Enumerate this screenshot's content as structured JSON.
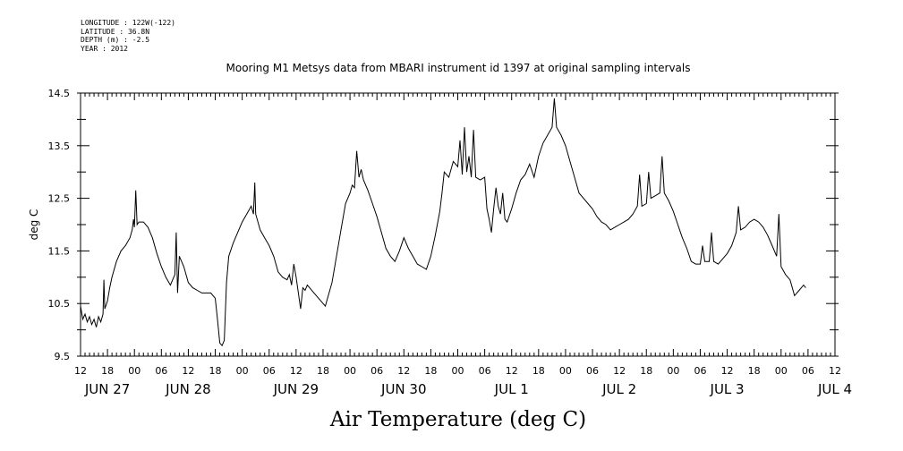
{
  "header": {
    "longitude": "LONGITUDE : 122W(-122)",
    "latitude": "LATITUDE : 36.8N",
    "depth": "DEPTH (m) : -2.5",
    "year": "YEAR : 2012"
  },
  "chart_data": {
    "type": "line",
    "title": "Mooring M1 Metsys data from MBARI instrument id 1397 at original sampling intervals",
    "xlabel": "Air Temperature (deg C)",
    "ylabel": "deg C",
    "ylim": [
      9.5,
      14.5
    ],
    "yticks": [
      "9.5",
      "10.5",
      "11.5",
      "12.5",
      "13.5",
      "14.5"
    ],
    "x_unit": "hours since JUN 27 00:00",
    "xlim": [
      12,
      180
    ],
    "hour_ticks": [
      "12",
      "18",
      "00",
      "06",
      "12",
      "18",
      "00",
      "06",
      "12",
      "18",
      "00",
      "06",
      "12",
      "18",
      "00",
      "06",
      "12",
      "18",
      "00",
      "06",
      "12",
      "18",
      "00",
      "06",
      "12",
      "18",
      "00",
      "06",
      "12"
    ],
    "dates": [
      "JUN 27",
      "JUN 28",
      "JUN 29",
      "JUN 30",
      "JUL  1",
      "JUL  2",
      "JUL  3",
      "JUL  4"
    ],
    "grid": false,
    "series": [
      {
        "color": "#000000",
        "points": [
          [
            12.0,
            10.45
          ],
          [
            12.5,
            10.2
          ],
          [
            13.0,
            10.3
          ],
          [
            13.5,
            10.15
          ],
          [
            14.0,
            10.25
          ],
          [
            14.5,
            10.1
          ],
          [
            15.0,
            10.2
          ],
          [
            15.5,
            10.05
          ],
          [
            16.0,
            10.25
          ],
          [
            16.5,
            10.15
          ],
          [
            17.0,
            10.3
          ],
          [
            17.2,
            10.95
          ],
          [
            17.4,
            10.4
          ],
          [
            18.0,
            10.55
          ],
          [
            18.5,
            10.8
          ],
          [
            19.0,
            11.0
          ],
          [
            20.0,
            11.3
          ],
          [
            21.0,
            11.5
          ],
          [
            22.0,
            11.6
          ],
          [
            23.0,
            11.75
          ],
          [
            23.5,
            11.9
          ],
          [
            23.8,
            12.1
          ],
          [
            24.0,
            11.95
          ],
          [
            24.3,
            12.65
          ],
          [
            24.6,
            12.0
          ],
          [
            25.0,
            12.05
          ],
          [
            26.0,
            12.05
          ],
          [
            27.0,
            11.95
          ],
          [
            28.0,
            11.75
          ],
          [
            29.0,
            11.45
          ],
          [
            30.0,
            11.2
          ],
          [
            31.0,
            11.0
          ],
          [
            32.0,
            10.85
          ],
          [
            32.5,
            10.95
          ],
          [
            33.0,
            11.05
          ],
          [
            33.3,
            11.85
          ],
          [
            33.6,
            10.7
          ],
          [
            34.0,
            11.4
          ],
          [
            35.0,
            11.2
          ],
          [
            36.0,
            10.9
          ],
          [
            37.0,
            10.8
          ],
          [
            38.0,
            10.75
          ],
          [
            39.0,
            10.7
          ],
          [
            40.0,
            10.7
          ],
          [
            41.0,
            10.7
          ],
          [
            42.0,
            10.6
          ],
          [
            42.5,
            10.2
          ],
          [
            43.0,
            9.75
          ],
          [
            43.5,
            9.7
          ],
          [
            44.0,
            9.8
          ],
          [
            44.5,
            10.9
          ],
          [
            45.0,
            11.4
          ],
          [
            46.0,
            11.65
          ],
          [
            47.0,
            11.85
          ],
          [
            48.0,
            12.05
          ],
          [
            49.0,
            12.2
          ],
          [
            50.0,
            12.35
          ],
          [
            50.5,
            12.2
          ],
          [
            50.8,
            12.8
          ],
          [
            51.0,
            12.2
          ],
          [
            52.0,
            11.9
          ],
          [
            53.0,
            11.75
          ],
          [
            54.0,
            11.6
          ],
          [
            55.0,
            11.4
          ],
          [
            56.0,
            11.1
          ],
          [
            57.0,
            11.0
          ],
          [
            58.0,
            10.95
          ],
          [
            58.5,
            11.05
          ],
          [
            59.0,
            10.85
          ],
          [
            59.5,
            11.25
          ],
          [
            60.0,
            11.0
          ],
          [
            60.5,
            10.7
          ],
          [
            61.0,
            10.4
          ],
          [
            61.5,
            10.8
          ],
          [
            62.0,
            10.75
          ],
          [
            62.5,
            10.85
          ],
          [
            63.0,
            10.8
          ],
          [
            64.0,
            10.7
          ],
          [
            65.0,
            10.6
          ],
          [
            66.0,
            10.5
          ],
          [
            66.5,
            10.45
          ],
          [
            67.0,
            10.6
          ],
          [
            68.0,
            10.9
          ],
          [
            69.0,
            11.4
          ],
          [
            70.0,
            11.9
          ],
          [
            71.0,
            12.4
          ],
          [
            72.0,
            12.6
          ],
          [
            72.5,
            12.75
          ],
          [
            73.0,
            12.7
          ],
          [
            73.5,
            13.4
          ],
          [
            74.0,
            12.9
          ],
          [
            74.5,
            13.05
          ],
          [
            75.0,
            12.85
          ],
          [
            76.0,
            12.65
          ],
          [
            77.0,
            12.4
          ],
          [
            78.0,
            12.15
          ],
          [
            79.0,
            11.85
          ],
          [
            80.0,
            11.55
          ],
          [
            81.0,
            11.4
          ],
          [
            82.0,
            11.3
          ],
          [
            83.0,
            11.5
          ],
          [
            84.0,
            11.75
          ],
          [
            85.0,
            11.55
          ],
          [
            86.0,
            11.4
          ],
          [
            87.0,
            11.25
          ],
          [
            88.0,
            11.2
          ],
          [
            89.0,
            11.15
          ],
          [
            90.0,
            11.4
          ],
          [
            91.0,
            11.8
          ],
          [
            92.0,
            12.25
          ],
          [
            92.5,
            12.6
          ],
          [
            93.0,
            13.0
          ],
          [
            94.0,
            12.9
          ],
          [
            95.0,
            13.2
          ],
          [
            96.0,
            13.1
          ],
          [
            96.5,
            13.6
          ],
          [
            97.0,
            12.95
          ],
          [
            97.5,
            13.85
          ],
          [
            98.0,
            13.0
          ],
          [
            98.5,
            13.3
          ],
          [
            99.0,
            12.9
          ],
          [
            99.5,
            13.8
          ],
          [
            100.0,
            12.9
          ],
          [
            101.0,
            12.85
          ],
          [
            102.0,
            12.9
          ],
          [
            102.5,
            12.3
          ],
          [
            103.0,
            12.1
          ],
          [
            103.5,
            11.85
          ],
          [
            104.0,
            12.3
          ],
          [
            104.5,
            12.7
          ],
          [
            105.0,
            12.35
          ],
          [
            105.5,
            12.2
          ],
          [
            106.0,
            12.6
          ],
          [
            106.5,
            12.1
          ],
          [
            107.0,
            12.05
          ],
          [
            108.0,
            12.3
          ],
          [
            109.0,
            12.6
          ],
          [
            110.0,
            12.85
          ],
          [
            111.0,
            12.95
          ],
          [
            112.0,
            13.15
          ],
          [
            113.0,
            12.9
          ],
          [
            114.0,
            13.3
          ],
          [
            115.0,
            13.55
          ],
          [
            116.0,
            13.7
          ],
          [
            117.0,
            13.85
          ],
          [
            117.5,
            14.4
          ],
          [
            118.0,
            13.85
          ],
          [
            119.0,
            13.7
          ],
          [
            120.0,
            13.5
          ],
          [
            121.0,
            13.2
          ],
          [
            122.0,
            12.9
          ],
          [
            123.0,
            12.6
          ],
          [
            124.0,
            12.5
          ],
          [
            125.0,
            12.4
          ],
          [
            126.0,
            12.3
          ],
          [
            127.0,
            12.15
          ],
          [
            128.0,
            12.05
          ],
          [
            129.0,
            12.0
          ],
          [
            130.0,
            11.9
          ],
          [
            131.0,
            11.95
          ],
          [
            132.0,
            12.0
          ],
          [
            133.0,
            12.05
          ],
          [
            134.0,
            12.1
          ],
          [
            135.0,
            12.2
          ],
          [
            136.0,
            12.35
          ],
          [
            136.5,
            12.95
          ],
          [
            137.0,
            12.35
          ],
          [
            138.0,
            12.4
          ],
          [
            138.5,
            13.0
          ],
          [
            139.0,
            12.5
          ],
          [
            140.0,
            12.55
          ],
          [
            141.0,
            12.6
          ],
          [
            141.5,
            13.3
          ],
          [
            142.0,
            12.6
          ],
          [
            143.0,
            12.45
          ],
          [
            144.0,
            12.25
          ],
          [
            145.0,
            12.0
          ],
          [
            146.0,
            11.75
          ],
          [
            147.0,
            11.55
          ],
          [
            148.0,
            11.3
          ],
          [
            149.0,
            11.25
          ],
          [
            150.0,
            11.25
          ],
          [
            150.5,
            11.6
          ],
          [
            151.0,
            11.3
          ],
          [
            152.0,
            11.3
          ],
          [
            152.5,
            11.85
          ],
          [
            153.0,
            11.3
          ],
          [
            154.0,
            11.25
          ],
          [
            155.0,
            11.35
          ],
          [
            156.0,
            11.45
          ],
          [
            157.0,
            11.6
          ],
          [
            158.0,
            11.85
          ],
          [
            158.5,
            12.35
          ],
          [
            159.0,
            11.9
          ],
          [
            160.0,
            11.95
          ],
          [
            161.0,
            12.05
          ],
          [
            162.0,
            12.1
          ],
          [
            163.0,
            12.05
          ],
          [
            164.0,
            11.95
          ],
          [
            165.0,
            11.8
          ],
          [
            166.0,
            11.6
          ],
          [
            167.0,
            11.4
          ],
          [
            167.5,
            12.2
          ],
          [
            168.0,
            11.2
          ],
          [
            169.0,
            11.05
          ],
          [
            170.0,
            10.95
          ],
          [
            171.0,
            10.65
          ],
          [
            172.0,
            10.75
          ],
          [
            173.0,
            10.85
          ],
          [
            173.5,
            10.8
          ]
        ]
      }
    ]
  }
}
